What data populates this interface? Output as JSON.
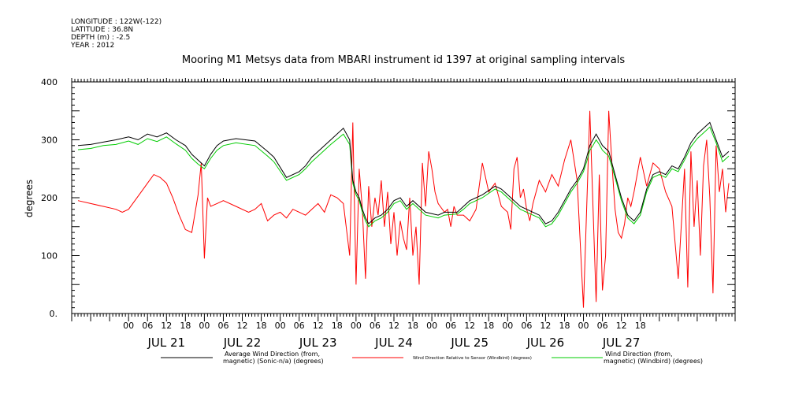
{
  "header": {
    "meta_lines": [
      "LONGITUDE : 122W(-122)",
      "LATITUDE : 36.8N",
      "DEPTH (m) : -2.5",
      "YEAR : 2012"
    ],
    "title": "Mooring M1 Metsys data from MBARI instrument id 1397 at original sampling intervals"
  },
  "chart_data": {
    "type": "line",
    "title": "Mooring M1 Metsys data from MBARI instrument id 1397 at original sampling intervals",
    "xlabel": "",
    "ylabel": "degrees",
    "xlim_hours": [
      -18,
      192
    ],
    "ylim": [
      0,
      400
    ],
    "y_ticks": [
      0,
      100,
      200,
      300,
      400
    ],
    "y_tick_labels": [
      "0.",
      "100",
      "200",
      "300",
      "400"
    ],
    "x_hour_labels": [
      "00",
      "06",
      "12",
      "18",
      "00",
      "06",
      "12",
      "18",
      "00",
      "06",
      "12",
      "18",
      "00",
      "06",
      "12",
      "18",
      "00",
      "06",
      "12",
      "18",
      "00",
      "06",
      "12",
      "18",
      "00",
      "06",
      "12",
      "18"
    ],
    "day_labels": [
      "JUL 21",
      "JUL 22",
      "JUL 23",
      "JUL 24",
      "JUL 25",
      "JUL 26",
      "JUL 27"
    ],
    "grid": false,
    "legend_position": "bottom",
    "series": [
      {
        "name": "Average Wind Direction (from, magnetic) (Sonic-n/a) (degrees)",
        "legend_lines": [
          "Average Wind Direction (from,",
          "magnetic) (Sonic-n/a) (degrees)"
        ],
        "color": "#000000",
        "x": [
          -16,
          -12,
          -8,
          -4,
          0,
          3,
          6,
          9,
          12,
          15,
          18,
          20,
          22,
          24,
          26,
          28,
          30,
          34,
          40,
          44,
          46,
          50,
          54,
          56,
          58,
          60,
          64,
          68,
          70,
          71,
          72,
          73,
          74,
          75,
          76,
          77,
          78,
          80,
          82,
          84,
          86,
          88,
          90,
          94,
          98,
          100,
          104,
          106,
          108,
          112,
          116,
          118,
          120,
          124,
          126,
          128,
          130,
          132,
          134,
          136,
          138,
          140,
          142,
          144,
          145,
          146,
          147,
          148,
          149,
          150,
          152,
          154,
          156,
          158,
          160,
          162,
          164,
          166,
          168,
          170,
          172,
          174,
          176,
          178,
          180,
          182,
          184,
          186,
          188,
          190
        ],
        "y": [
          290,
          292,
          296,
          300,
          305,
          300,
          310,
          305,
          312,
          300,
          290,
          275,
          265,
          255,
          275,
          290,
          298,
          302,
          298,
          280,
          270,
          235,
          245,
          255,
          270,
          280,
          300,
          320,
          300,
          230,
          210,
          200,
          180,
          165,
          155,
          160,
          165,
          170,
          180,
          195,
          200,
          185,
          195,
          175,
          170,
          175,
          175,
          185,
          195,
          205,
          220,
          215,
          205,
          185,
          180,
          175,
          170,
          155,
          160,
          175,
          195,
          215,
          230,
          250,
          270,
          290,
          300,
          310,
          300,
          290,
          280,
          240,
          200,
          170,
          160,
          175,
          215,
          240,
          245,
          240,
          255,
          250,
          270,
          295,
          310,
          320,
          330,
          300,
          270,
          280
        ]
      },
      {
        "name": "Wind Direction Relative to Sensor (Windbird) (degrees)",
        "legend_lines": [
          "Wind Direction Relative to Sensor (Windbird) (degrees)"
        ],
        "color": "#ff0000",
        "x": [
          -16,
          -12,
          -8,
          -4,
          -2,
          0,
          2,
          4,
          6,
          8,
          10,
          12,
          14,
          16,
          18,
          20,
          22,
          23,
          24,
          25,
          26,
          28,
          30,
          34,
          38,
          40,
          42,
          44,
          46,
          48,
          50,
          52,
          56,
          60,
          62,
          64,
          66,
          68,
          70,
          71,
          72,
          73,
          74,
          75,
          76,
          77,
          78,
          79,
          80,
          81,
          82,
          83,
          84,
          85,
          86,
          87,
          88,
          89,
          90,
          91,
          92,
          93,
          94,
          95,
          96,
          97,
          98,
          100,
          101,
          102,
          103,
          104,
          106,
          108,
          110,
          112,
          114,
          116,
          118,
          120,
          121,
          122,
          123,
          124,
          125,
          126,
          127,
          128,
          130,
          132,
          134,
          136,
          138,
          140,
          142,
          144,
          146,
          148,
          149,
          150,
          151,
          152,
          153,
          154,
          155,
          156,
          157,
          158,
          159,
          160,
          162,
          164,
          166,
          168,
          170,
          172,
          174,
          176,
          177,
          178,
          179,
          180,
          181,
          182,
          183,
          184,
          185,
          186,
          187,
          188,
          189,
          190
        ],
        "y": [
          195,
          190,
          185,
          180,
          175,
          180,
          195,
          210,
          225,
          240,
          235,
          225,
          200,
          170,
          145,
          140,
          205,
          260,
          95,
          200,
          185,
          190,
          195,
          185,
          175,
          180,
          190,
          160,
          170,
          175,
          165,
          180,
          170,
          190,
          175,
          205,
          200,
          190,
          100,
          330,
          50,
          250,
          180,
          60,
          220,
          150,
          200,
          170,
          230,
          150,
          210,
          120,
          175,
          100,
          160,
          130,
          110,
          200,
          100,
          150,
          50,
          260,
          185,
          280,
          250,
          210,
          190,
          175,
          180,
          150,
          185,
          170,
          170,
          160,
          180,
          260,
          210,
          225,
          185,
          175,
          145,
          250,
          270,
          200,
          215,
          180,
          160,
          190,
          230,
          210,
          240,
          220,
          265,
          300,
          230,
          10,
          350,
          20,
          240,
          40,
          100,
          350,
          260,
          180,
          140,
          130,
          155,
          200,
          185,
          210,
          270,
          220,
          260,
          250,
          210,
          185,
          60,
          250,
          45,
          280,
          150,
          230,
          100,
          255,
          300,
          200,
          35,
          290,
          210,
          250,
          175,
          225
        ]
      },
      {
        "name": "Wind Direction (from, magnetic) (Windbird) (degrees)",
        "legend_lines": [
          "Wind Direction (from,",
          "magnetic) (Windbird) (degrees)"
        ],
        "color": "#00cc00",
        "x": [
          -16,
          -12,
          -8,
          -4,
          0,
          3,
          6,
          9,
          12,
          15,
          18,
          20,
          22,
          24,
          26,
          28,
          30,
          34,
          40,
          44,
          46,
          50,
          54,
          56,
          58,
          60,
          64,
          68,
          70,
          71,
          72,
          73,
          74,
          75,
          76,
          77,
          78,
          80,
          82,
          84,
          86,
          88,
          90,
          94,
          98,
          100,
          104,
          106,
          108,
          112,
          116,
          118,
          120,
          124,
          126,
          128,
          130,
          132,
          134,
          136,
          138,
          140,
          142,
          144,
          145,
          146,
          147,
          148,
          149,
          150,
          152,
          154,
          156,
          158,
          160,
          162,
          164,
          166,
          168,
          170,
          172,
          174,
          176,
          178,
          180,
          182,
          184,
          186,
          188,
          190
        ],
        "y": [
          283,
          285,
          290,
          292,
          298,
          292,
          302,
          297,
          305,
          293,
          282,
          268,
          258,
          250,
          268,
          282,
          290,
          295,
          290,
          272,
          262,
          230,
          240,
          250,
          262,
          272,
          292,
          310,
          292,
          225,
          205,
          195,
          175,
          160,
          150,
          155,
          160,
          165,
          175,
          190,
          195,
          180,
          190,
          170,
          165,
          170,
          172,
          180,
          190,
          200,
          215,
          210,
          200,
          180,
          175,
          170,
          165,
          150,
          155,
          170,
          190,
          210,
          225,
          245,
          262,
          282,
          290,
          300,
          292,
          282,
          272,
          235,
          195,
          165,
          155,
          170,
          210,
          235,
          240,
          235,
          250,
          245,
          265,
          288,
          302,
          312,
          322,
          295,
          262,
          272
        ]
      }
    ]
  },
  "colors": {
    "axis": "#000000",
    "black_series": "#000000",
    "red_series": "#ff0000",
    "green_series": "#00cc00"
  }
}
